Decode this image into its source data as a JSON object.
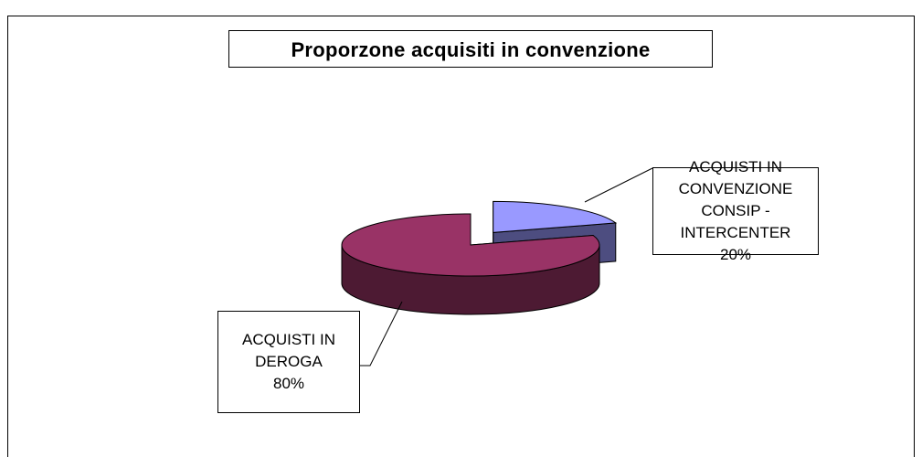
{
  "chart_data": {
    "type": "pie3d",
    "title": "Proporzone acquisiti in convenzione",
    "categories": [
      "ACQUISTI IN CONVENZIONE CONSIP - INTERCENTER",
      "ACQUISTI IN DEROGA"
    ],
    "values": [
      20,
      80
    ],
    "value_labels": [
      "20%",
      "80%"
    ],
    "colors": [
      "#9999ff",
      "#993366"
    ],
    "side_colors": [
      "#4d4d80",
      "#4d1a33"
    ],
    "exploded": [
      true,
      false
    ]
  }
}
